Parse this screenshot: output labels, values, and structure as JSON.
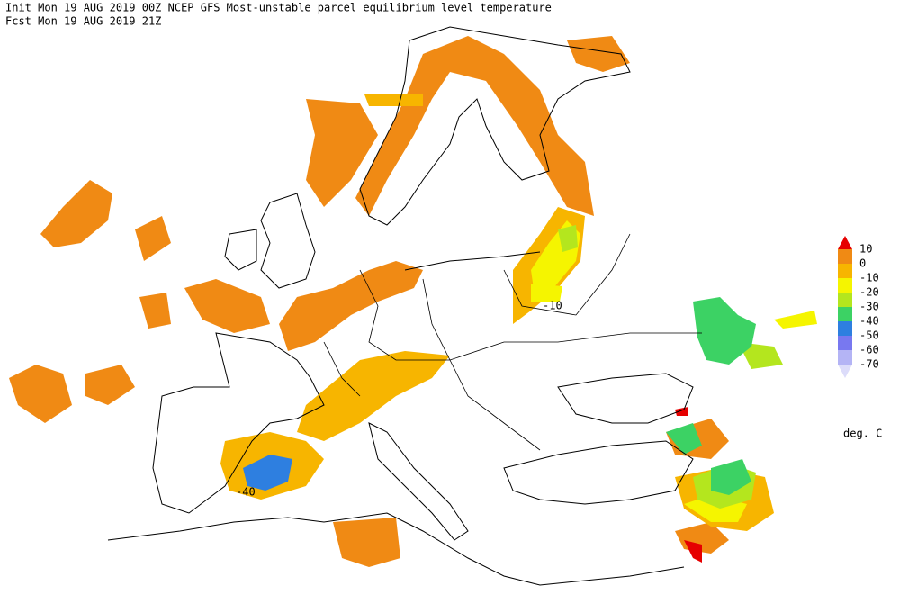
{
  "header": {
    "init": "Init  Mon 19 AUG 2019 00Z  NCEP GFS Most-unstable parcel equilibrium level temperature",
    "forecast": "Fcst Mon 19 AUG 2019 21Z"
  },
  "legend": {
    "labels": [
      "10",
      "0",
      "-10",
      "-20",
      "-30",
      "-40",
      "-50",
      "-60",
      "-70"
    ],
    "colors": [
      "#e60000",
      "#f08a14",
      "#f7b500",
      "#f5f500",
      "#b4e61e",
      "#3cd264",
      "#2e7fe0",
      "#7878f0",
      "#b4b4f5",
      "#dcdcfa"
    ],
    "units": "deg. C"
  },
  "contour_labels": [
    "-10",
    "-40"
  ]
}
